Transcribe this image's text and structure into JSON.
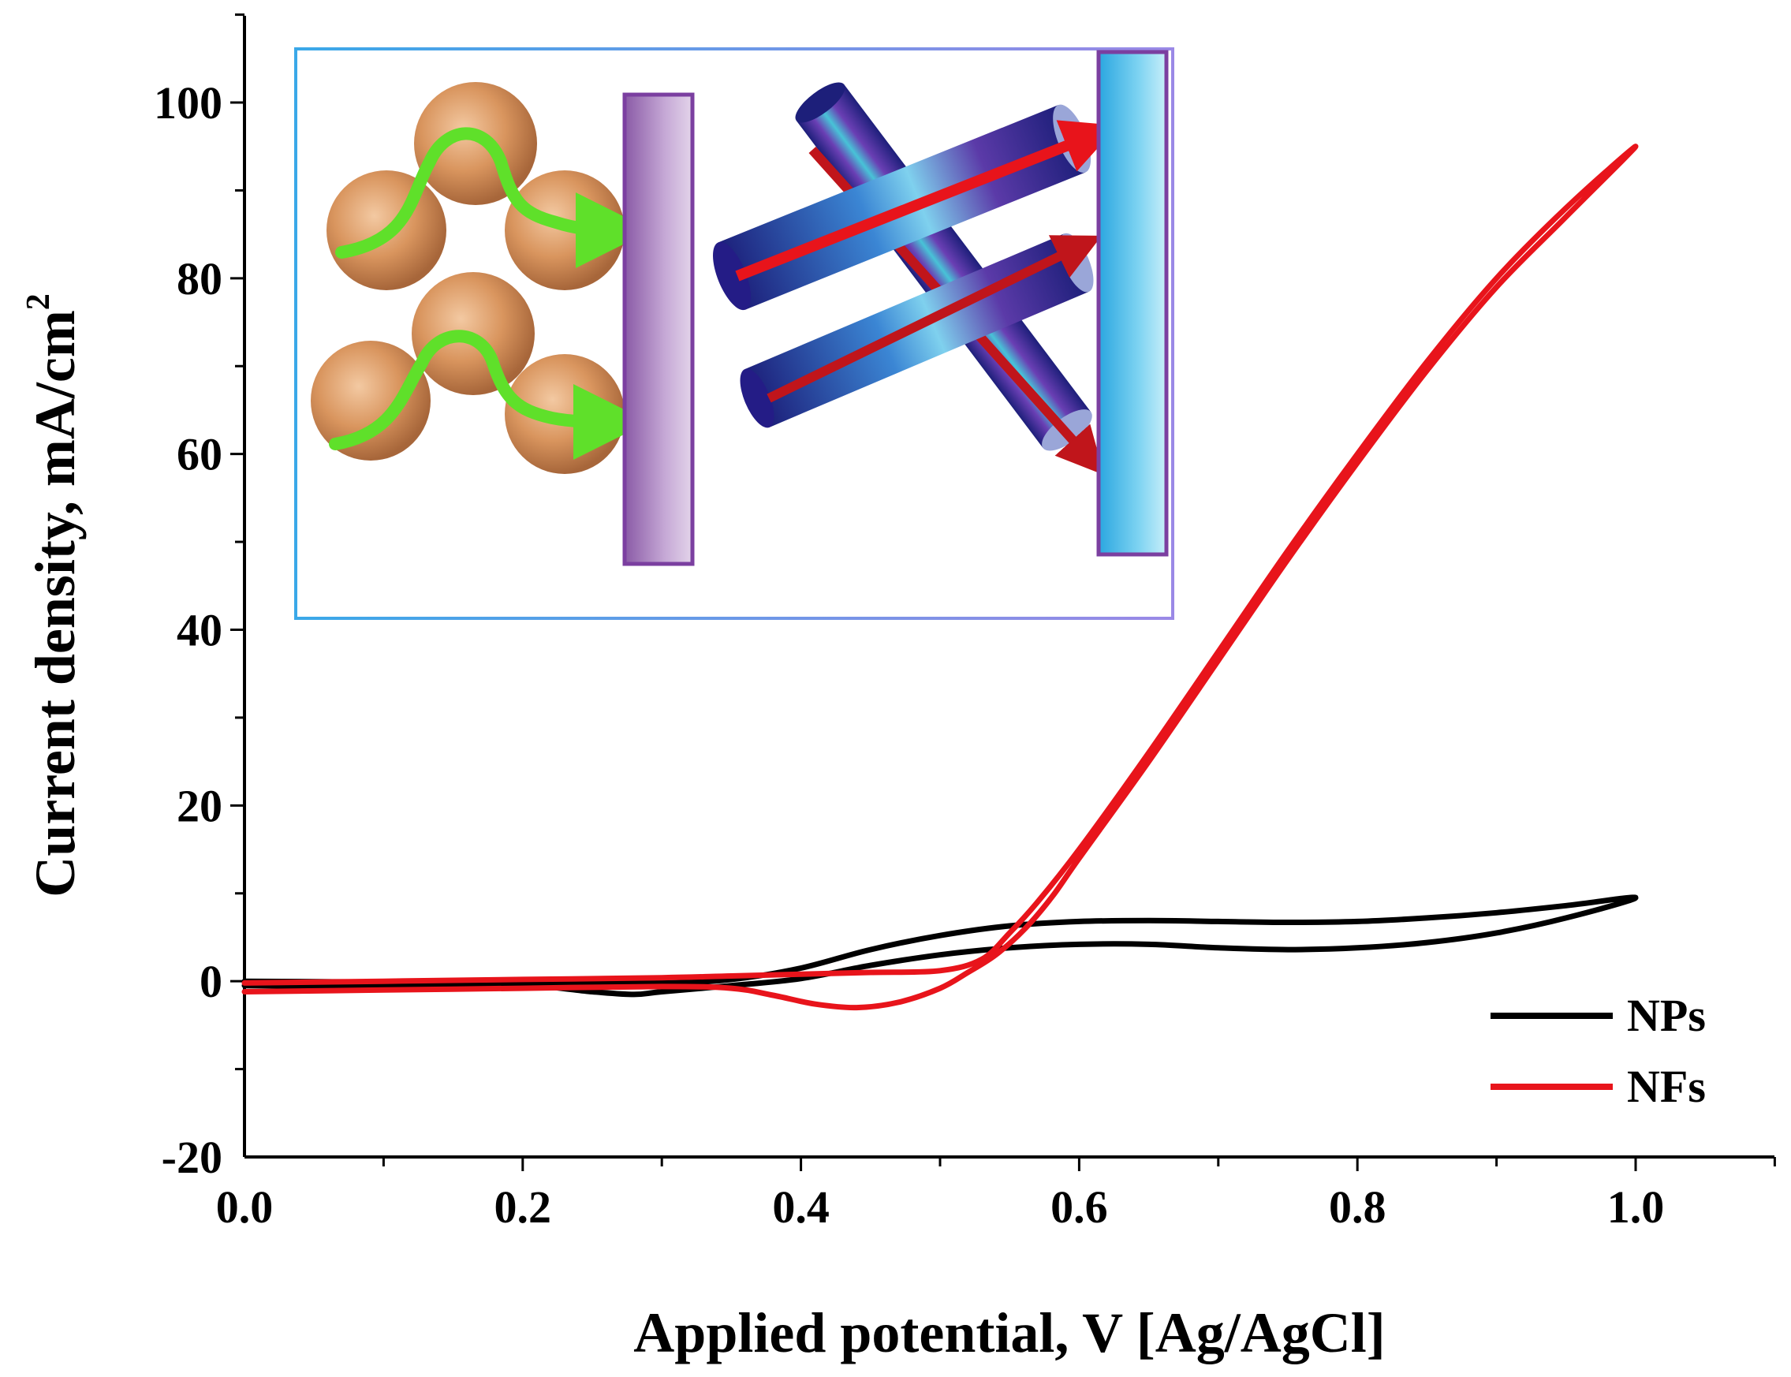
{
  "chart_data": {
    "type": "line",
    "title": "",
    "xlabel": "Applied potential, V [Ag/AgCl]",
    "ylabel": "Current density, mA/cm",
    "ylabel_sup": "2",
    "xlim": [
      0.0,
      1.1
    ],
    "ylim": [
      -20,
      110
    ],
    "xticks": [
      0.0,
      0.2,
      0.4,
      0.6,
      0.8,
      1.0
    ],
    "xtick_labels": [
      "0.0",
      "0.2",
      "0.4",
      "0.6",
      "0.8",
      "1.0"
    ],
    "yticks": [
      -20,
      0,
      20,
      40,
      60,
      80,
      100
    ],
    "ytick_labels": [
      "-20",
      "0",
      "20",
      "40",
      "60",
      "80",
      "100"
    ],
    "legend_position": "bottom-right",
    "series": [
      {
        "name": "NPs",
        "color": "#000000",
        "x": [
          0.0,
          0.1,
          0.2,
          0.25,
          0.28,
          0.3,
          0.35,
          0.4,
          0.45,
          0.5,
          0.55,
          0.6,
          0.65,
          0.7,
          0.75,
          0.8,
          0.85,
          0.9,
          0.95,
          1.0,
          0.95,
          0.9,
          0.85,
          0.8,
          0.75,
          0.7,
          0.65,
          0.6,
          0.55,
          0.5,
          0.45,
          0.4,
          0.35,
          0.3,
          0.2,
          0.1,
          0.0
        ],
        "y": [
          -0.5,
          -0.6,
          -0.5,
          -1.2,
          -1.5,
          -1.2,
          -0.5,
          0.3,
          1.8,
          3.0,
          3.8,
          4.2,
          4.2,
          3.8,
          3.6,
          3.8,
          4.4,
          5.5,
          7.2,
          9.5,
          8.6,
          7.8,
          7.2,
          6.8,
          6.7,
          6.8,
          6.9,
          6.8,
          6.3,
          5.2,
          3.6,
          1.5,
          0.2,
          -0.2,
          -0.2,
          -0.1,
          0.0
        ]
      },
      {
        "name": "NFs",
        "color": "#e8141b",
        "x": [
          0.0,
          0.1,
          0.2,
          0.3,
          0.35,
          0.38,
          0.41,
          0.44,
          0.47,
          0.5,
          0.52,
          0.54,
          0.56,
          0.58,
          0.6,
          0.65,
          0.7,
          0.75,
          0.8,
          0.85,
          0.9,
          0.95,
          1.0,
          0.95,
          0.9,
          0.85,
          0.8,
          0.75,
          0.7,
          0.65,
          0.6,
          0.57,
          0.55,
          0.53,
          0.5,
          0.45,
          0.4,
          0.35,
          0.3,
          0.2,
          0.1,
          0.0
        ],
        "y": [
          -1.2,
          -1.0,
          -0.8,
          -0.6,
          -0.8,
          -1.6,
          -2.6,
          -3.0,
          -2.4,
          -0.8,
          1.0,
          3.0,
          5.8,
          9.5,
          14.0,
          25.0,
          36.5,
          48.0,
          59.0,
          69.5,
          79.0,
          87.0,
          95.0,
          88.0,
          80.0,
          70.5,
          60.0,
          49.0,
          37.5,
          26.0,
          15.0,
          9.0,
          5.5,
          2.5,
          1.2,
          1.0,
          0.8,
          0.6,
          0.4,
          0.2,
          0.0,
          -0.2
        ]
      }
    ],
    "inset": {
      "description_type": "schematic",
      "left_panel": "nanoparticles",
      "right_panel": "nanofibers"
    }
  }
}
